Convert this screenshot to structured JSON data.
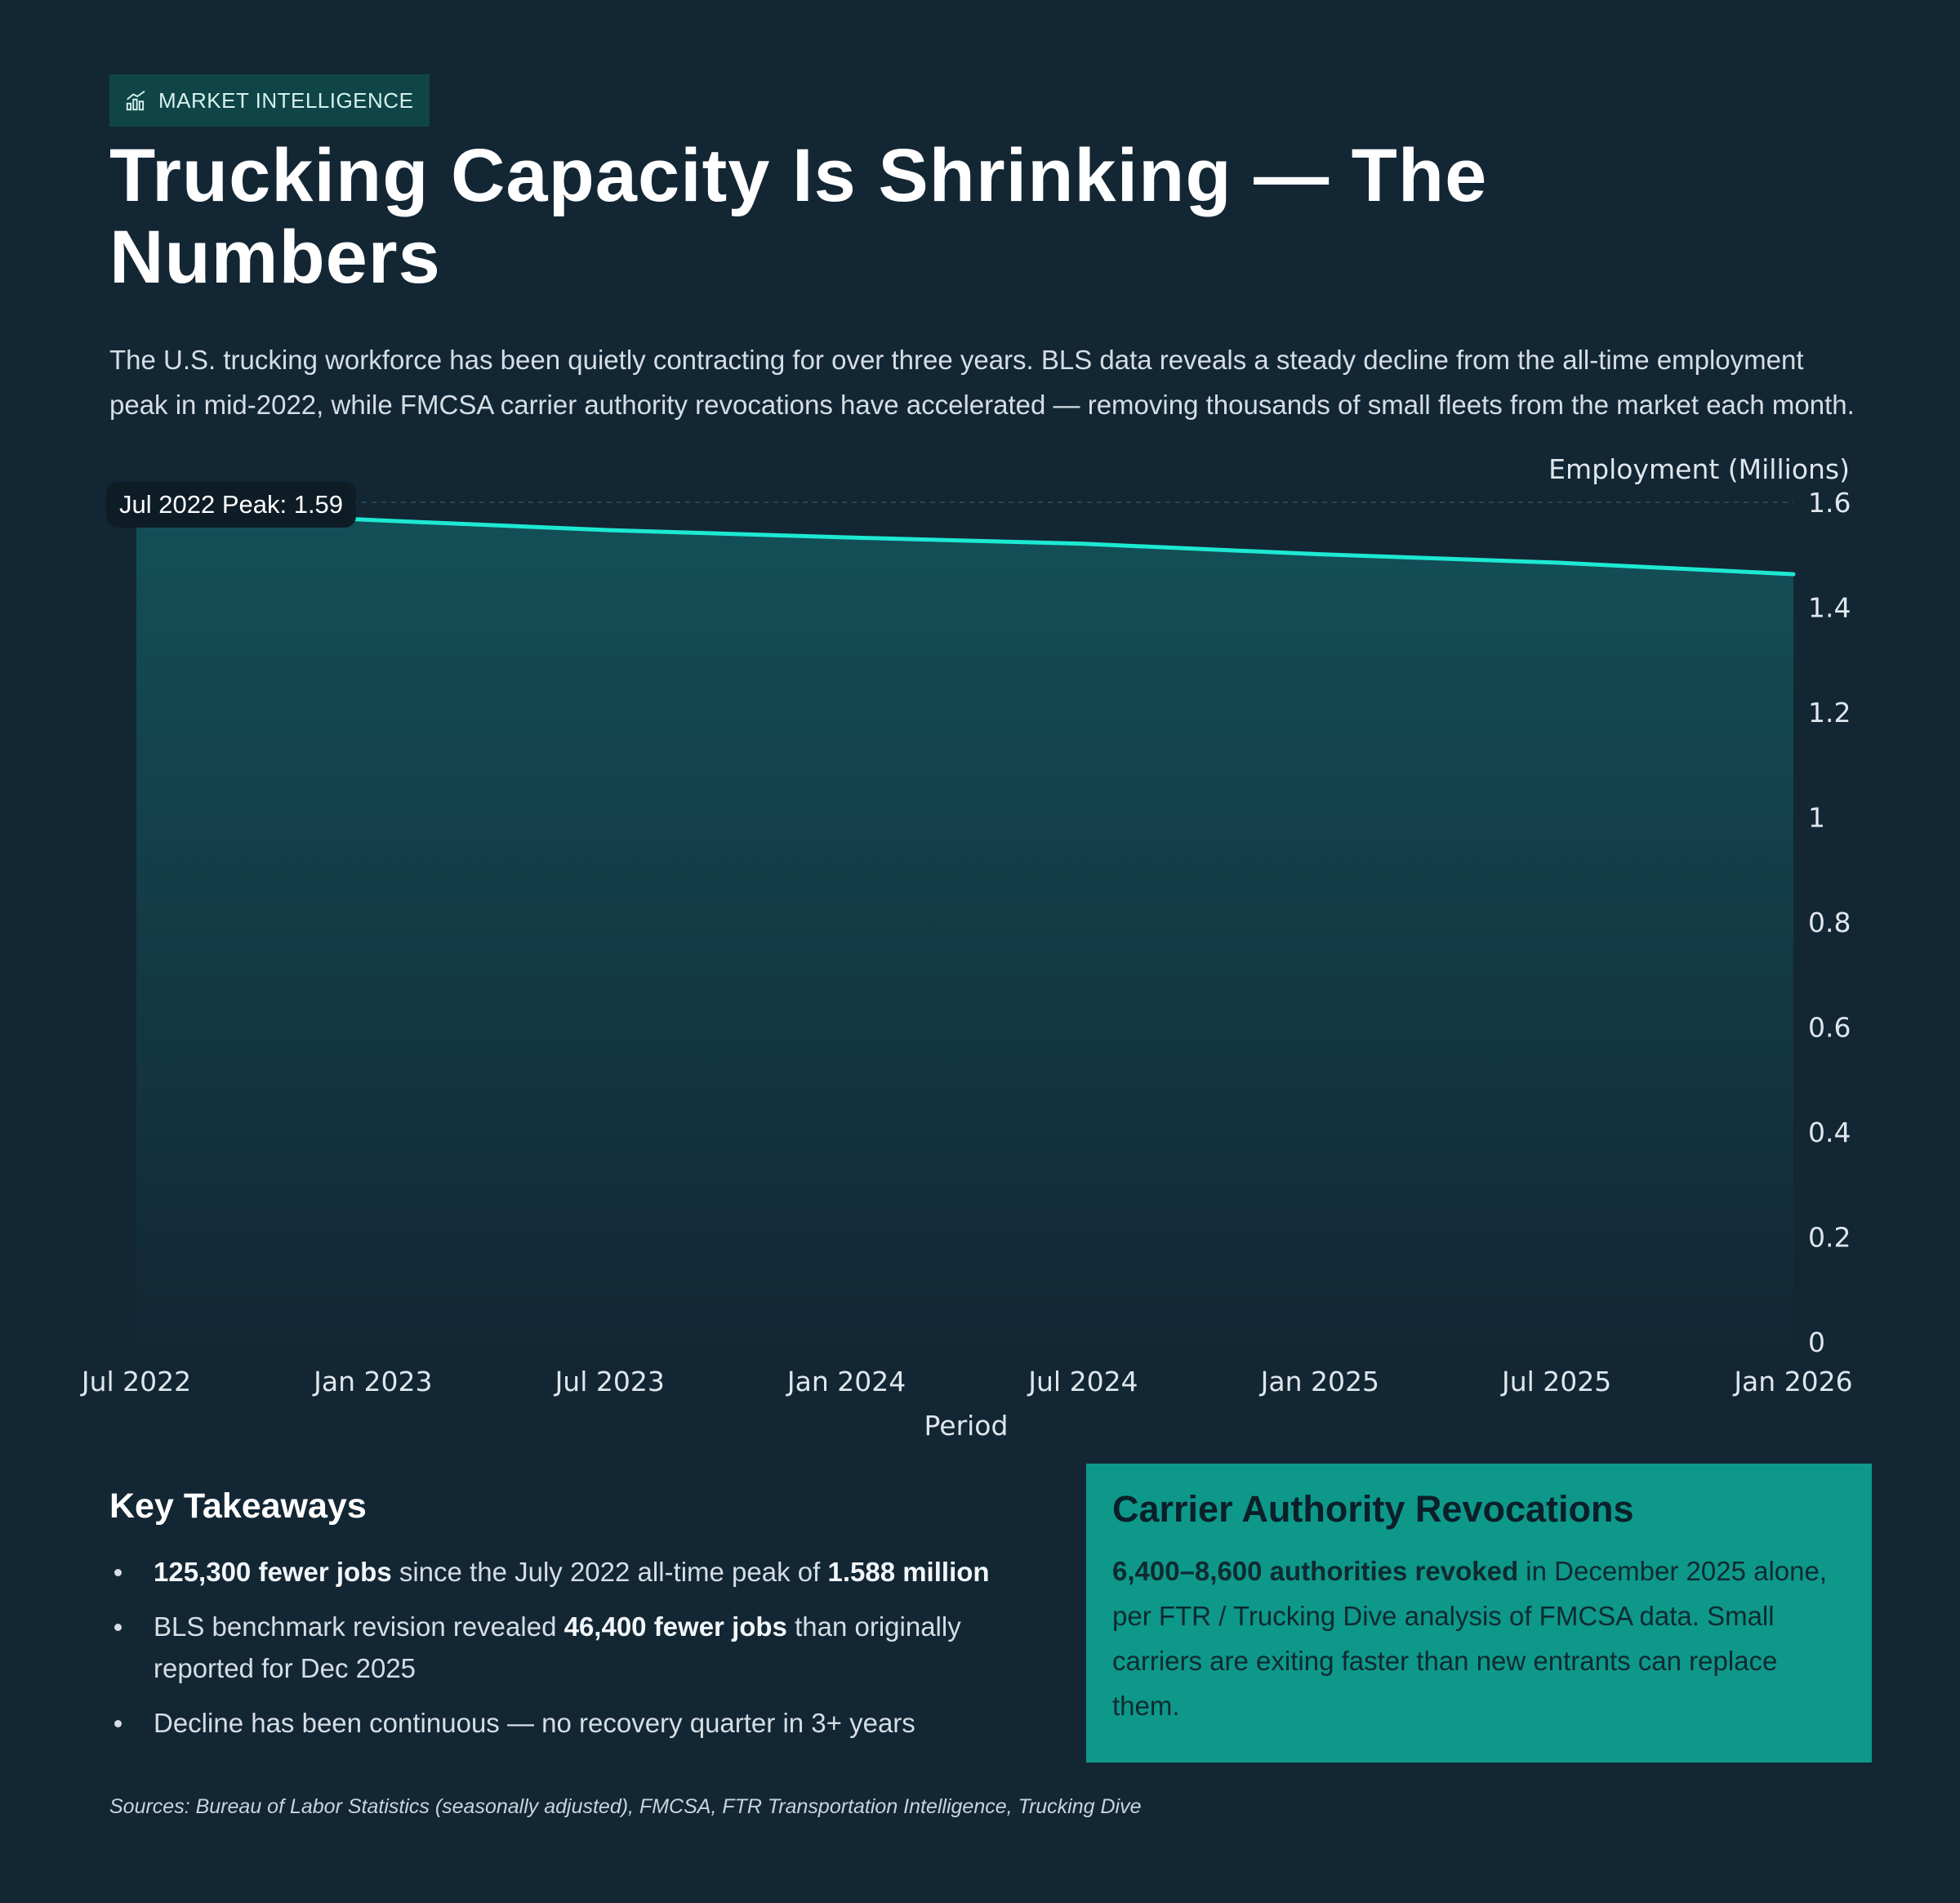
{
  "badge": {
    "icon": "bar-chart-icon",
    "label": "MARKET INTELLIGENCE"
  },
  "title": "Trucking Capacity Is Shrinking — The Numbers",
  "intro": "The U.S. trucking workforce has been quietly contracting for over three years. BLS data reveals a steady decline from the all-time employment peak in mid-2022, while FMCSA carrier authority revocations have accelerated — removing thousands of small fleets from the market each month.",
  "chart_data": {
    "type": "area",
    "title": "",
    "xlabel": "Period",
    "ylabel": "Employment (Millions)",
    "categories": [
      "Jul 2022",
      "Jan 2023",
      "Jul 2023",
      "Jan 2024",
      "Jul 2024",
      "Jan 2025",
      "Jul 2025",
      "Jan 2026"
    ],
    "series": [
      {
        "name": "Employment (Millions)",
        "values": [
          1.588,
          1.566,
          1.547,
          1.533,
          1.521,
          1.501,
          1.485,
          1.463
        ]
      }
    ],
    "ylim": [
      0,
      1.6
    ],
    "yticks": [
      "0",
      "0.2",
      "0.4",
      "0.6",
      "0.8",
      "1",
      "1.2",
      "1.4",
      "1.6"
    ],
    "y_axis_position": "right",
    "annotation": "Jul 2022 Peak: 1.59",
    "colors": {
      "line": "#1de9d2",
      "fill": "#13525a"
    }
  },
  "takeaways": {
    "heading": "Key Takeaways",
    "items": [
      {
        "parts": [
          {
            "b": true,
            "t": "125,300 fewer jobs"
          },
          {
            "t": " since the July 2022 all-time peak of "
          },
          {
            "b": true,
            "t": "1.588 million"
          }
        ]
      },
      {
        "parts": [
          {
            "t": "BLS benchmark revision revealed "
          },
          {
            "b": true,
            "t": "46,400 fewer jobs"
          },
          {
            "t": " than originally reported for Dec 2025"
          }
        ]
      },
      {
        "parts": [
          {
            "t": "Decline has been continuous — no recovery quarter in 3+ years"
          }
        ]
      }
    ]
  },
  "card": {
    "heading": "Carrier Authority Revocations",
    "highlight": "6,400–8,600 authorities revoked",
    "body": " in December 2025 alone, per FTR / Trucking Dive analysis of FMCSA data. Small carriers are exiting faster than new entrants can replace them."
  },
  "sources": "Sources: Bureau of Labor Statistics (seasonally adjusted), FMCSA, FTR Transportation Intelligence, Trucking Dive"
}
